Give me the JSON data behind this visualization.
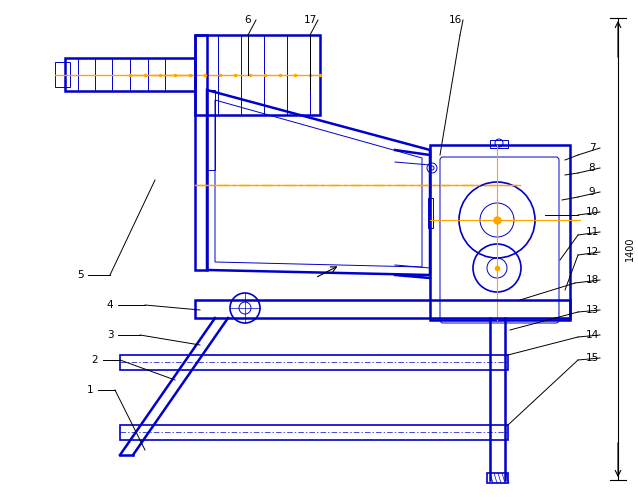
{
  "bg_color": "#ffffff",
  "dc": "#0000cc",
  "oc": "#ffa500",
  "bk": "#000000",
  "dimension_text": "1400",
  "lw_main": 1.8,
  "lw_med": 1.2,
  "lw_thin": 0.7
}
